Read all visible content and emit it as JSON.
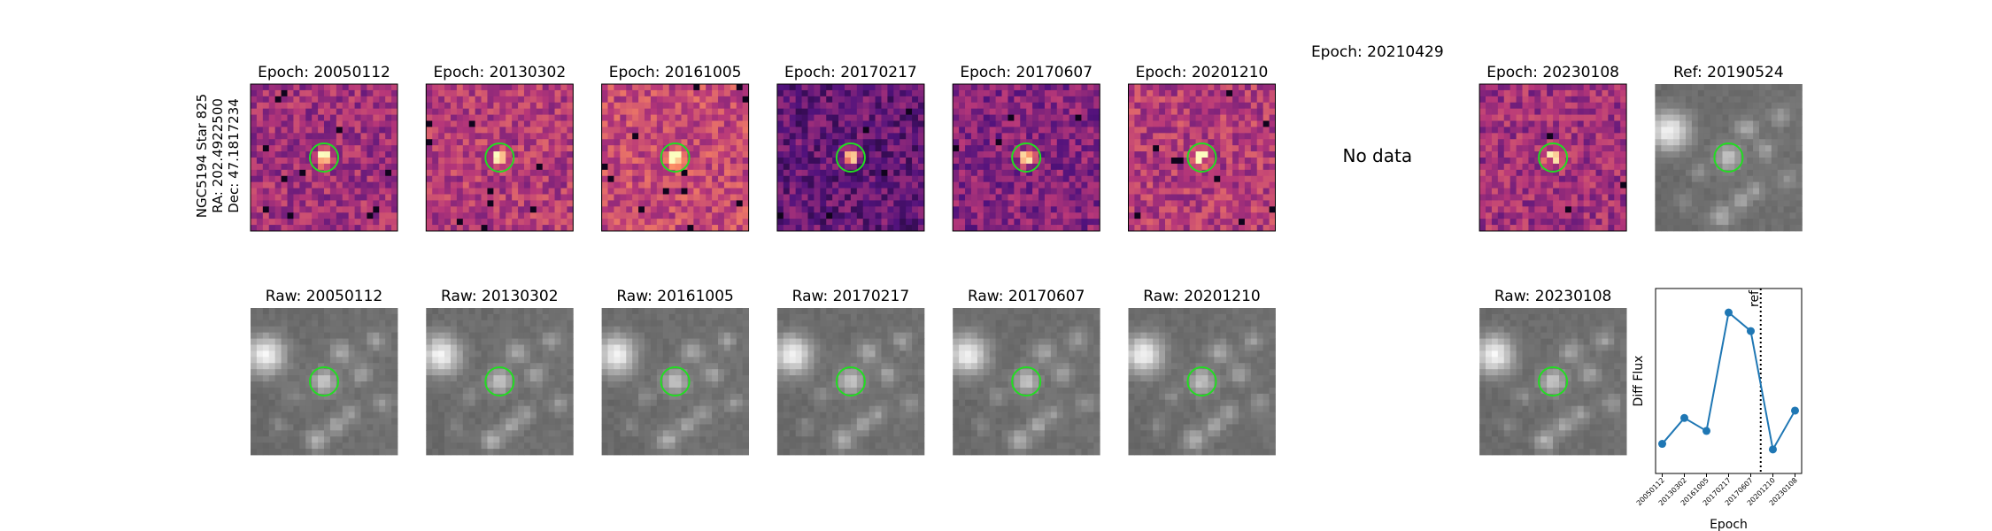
{
  "object": {
    "name": "NGC5194 Star 825",
    "ra": "RA: 202.4922500",
    "dec": "Dec: 47.1817234"
  },
  "epochs": [
    {
      "title": "Epoch: 20050112",
      "raw": "Raw: 20050112"
    },
    {
      "title": "Epoch: 20130302",
      "raw": "Raw: 20130302"
    },
    {
      "title": "Epoch: 20161005",
      "raw": "Raw: 20161005"
    },
    {
      "title": "Epoch: 20170217",
      "raw": "Raw: 20170217"
    },
    {
      "title": "Epoch: 20170607",
      "raw": "Raw: 20170607"
    },
    {
      "title": "Epoch: 20201210",
      "raw": "Raw: 20201210"
    },
    {
      "title": "Epoch: 20210429",
      "no_data": "No data"
    },
    {
      "title": "Epoch: 20230108",
      "raw": "Raw: 20230108"
    }
  ],
  "ref_panel": {
    "title": "Ref: 20190524"
  },
  "chart_data": {
    "type": "line",
    "categories": [
      "20050112",
      "20130302",
      "20161005",
      "20170217",
      "20170607",
      "20201210",
      "20230108"
    ],
    "series": [
      {
        "name": "Diff Flux",
        "color": "#1f77b4",
        "values": [
          16,
          30,
          23,
          87,
          77,
          13,
          34
        ]
      }
    ],
    "y_label": "Diff Flux",
    "x_label": "Epoch",
    "xlim": [
      -0.3,
      6.3
    ],
    "ylim": [
      0,
      100
    ],
    "ref_line": {
      "label": "ref",
      "x": 4.45
    }
  }
}
